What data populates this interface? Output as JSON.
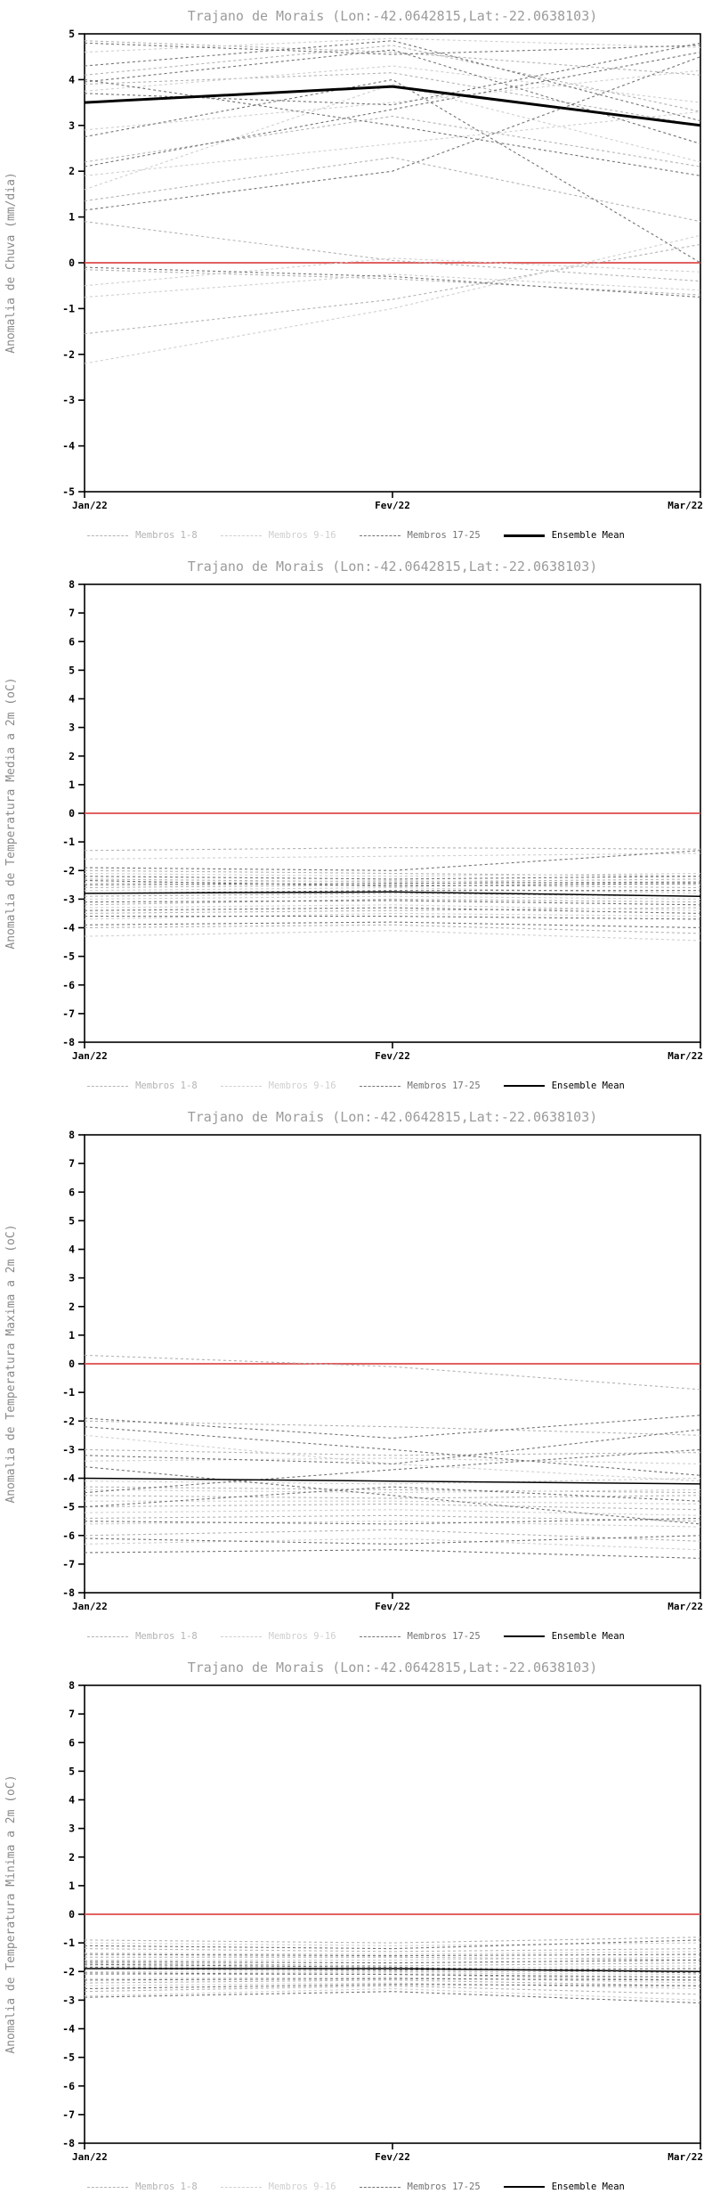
{
  "chart_data": [
    {
      "type": "line",
      "title": "Trajano de Morais (Lon:-42.0642815,Lat:-22.0638103)",
      "ylabel": "Anomalia de Chuva (mm/dia)",
      "x_categories": [
        "Jan/22",
        "Fev/22",
        "Mar/22"
      ],
      "ylim": [
        -5,
        5
      ],
      "ytick_step": 1,
      "grid": false,
      "legend_position": "bottom",
      "zero_line": {
        "value": 0,
        "color": "#dd4b4b"
      },
      "series_groups": [
        {
          "name": "Membros 1-8",
          "color": "#b3b3b3",
          "style": "dashed",
          "members": [
            [
              4.85,
              4.6,
              4.1
            ],
            [
              4.1,
              4.75,
              3.3
            ],
            [
              2.2,
              3.2,
              2.1
            ],
            [
              1.35,
              2.3,
              0.9
            ],
            [
              0.9,
              0.05,
              -0.4
            ],
            [
              -0.15,
              -0.35,
              -0.7
            ],
            [
              -1.55,
              -0.8,
              0.4
            ],
            [
              3.9,
              4.15,
              3.0
            ]
          ]
        },
        {
          "name": "Membros 9-16",
          "color": "#cfcfcf",
          "style": "dashed",
          "members": [
            [
              4.6,
              4.9,
              4.7
            ],
            [
              3.75,
              4.3,
              3.5
            ],
            [
              1.9,
              2.6,
              3.3
            ],
            [
              1.6,
              3.9,
              2.2
            ],
            [
              -0.5,
              0.1,
              -0.2
            ],
            [
              -0.75,
              -0.25,
              -0.6
            ],
            [
              -2.2,
              -1.0,
              0.6
            ],
            [
              2.9,
              3.5,
              4.2
            ]
          ]
        },
        {
          "name": "Membros 17-25",
          "color": "#737373",
          "style": "dashed",
          "members": [
            [
              4.8,
              4.55,
              4.75
            ],
            [
              4.3,
              4.85,
              3.1
            ],
            [
              3.95,
              4.65,
              2.6
            ],
            [
              3.7,
              3.45,
              4.8
            ],
            [
              2.1,
              3.35,
              4.6
            ],
            [
              2.75,
              4.0,
              0.0
            ],
            [
              1.15,
              2.0,
              4.5
            ],
            [
              -0.1,
              -0.3,
              -0.75
            ],
            [
              4.0,
              3.0,
              1.9
            ]
          ]
        }
      ],
      "ensemble_mean": {
        "name": "Ensemble Mean",
        "color": "#000000",
        "style": "solid",
        "line_width": 3,
        "values": [
          3.5,
          3.85,
          3.0
        ]
      }
    },
    {
      "type": "line",
      "title": "Trajano de Morais (Lon:-42.0642815,Lat:-22.0638103)",
      "ylabel": "Anomalia de Temperatura Media a 2m (oC)",
      "x_categories": [
        "Jan/22",
        "Fev/22",
        "Mar/22"
      ],
      "ylim": [
        -8,
        8
      ],
      "ytick_step": 1,
      "grid": false,
      "legend_position": "bottom",
      "zero_line": {
        "value": 0,
        "color": "#dd4b4b"
      },
      "series_groups": [
        {
          "name": "Membros 1-8",
          "color": "#b3b3b3",
          "style": "dashed",
          "members": [
            [
              -1.3,
              -1.2,
              -1.25
            ],
            [
              -2.0,
              -2.1,
              -2.2
            ],
            [
              -2.3,
              -2.4,
              -2.3
            ],
            [
              -2.6,
              -2.5,
              -2.6
            ],
            [
              -2.9,
              -2.8,
              -2.9
            ],
            [
              -3.2,
              -3.0,
              -3.1
            ],
            [
              -3.5,
              -3.4,
              -3.3
            ],
            [
              -4.0,
              -3.9,
              -4.2
            ]
          ]
        },
        {
          "name": "Membros 9-16",
          "color": "#cfcfcf",
          "style": "dashed",
          "members": [
            [
              -1.6,
              -1.5,
              -1.4
            ],
            [
              -2.1,
              -2.2,
              -2.1
            ],
            [
              -2.45,
              -2.35,
              -2.5
            ],
            [
              -2.7,
              -2.6,
              -2.8
            ],
            [
              -3.0,
              -2.9,
              -3.0
            ],
            [
              -3.3,
              -3.2,
              -3.4
            ],
            [
              -3.7,
              -3.5,
              -3.6
            ],
            [
              -4.3,
              -4.1,
              -4.45
            ]
          ]
        },
        {
          "name": "Membros 17-25",
          "color": "#737373",
          "style": "dashed",
          "members": [
            [
              -1.9,
              -2.0,
              -1.3
            ],
            [
              -2.2,
              -2.3,
              -2.2
            ],
            [
              -2.5,
              -2.45,
              -2.4
            ],
            [
              -2.8,
              -2.7,
              -2.7
            ],
            [
              -3.1,
              -3.05,
              -3.2
            ],
            [
              -3.4,
              -3.3,
              -3.5
            ],
            [
              -3.6,
              -3.6,
              -3.7
            ],
            [
              -3.9,
              -3.8,
              -4.0
            ],
            [
              -2.35,
              -2.55,
              -2.45
            ]
          ]
        }
      ],
      "ensemble_mean": {
        "name": "Ensemble Mean",
        "color": "#000000",
        "style": "solid",
        "line_width": 1.5,
        "values": [
          -2.8,
          -2.75,
          -2.9
        ]
      }
    },
    {
      "type": "line",
      "title": "Trajano de Morais (Lon:-42.0642815,Lat:-22.0638103)",
      "ylabel": "Anomalia de Temperatura Maxima a 2m (oC)",
      "x_categories": [
        "Jan/22",
        "Fev/22",
        "Mar/22"
      ],
      "ylim": [
        -8,
        8
      ],
      "ytick_step": 1,
      "grid": false,
      "legend_position": "bottom",
      "zero_line": {
        "value": 0,
        "color": "#dd4b4b"
      },
      "series_groups": [
        {
          "name": "Membros 1-8",
          "color": "#b3b3b3",
          "style": "dashed",
          "members": [
            [
              0.3,
              -0.1,
              -0.9
            ],
            [
              -2.0,
              -2.2,
              -2.5
            ],
            [
              -3.0,
              -3.2,
              -3.1
            ],
            [
              -4.3,
              -4.4,
              -4.5
            ],
            [
              -4.6,
              -4.7,
              -4.6
            ],
            [
              -5.0,
              -4.9,
              -5.1
            ],
            [
              -5.4,
              -5.3,
              -5.5
            ],
            [
              -6.0,
              -5.8,
              -6.2
            ]
          ]
        },
        {
          "name": "Membros 9-16",
          "color": "#cfcfcf",
          "style": "dashed",
          "members": [
            [
              -2.5,
              -3.5,
              -4.1
            ],
            [
              -3.4,
              -3.3,
              -3.5
            ],
            [
              -4.4,
              -4.5,
              -4.4
            ],
            [
              -4.8,
              -4.8,
              -4.9
            ],
            [
              -5.2,
              -5.1,
              -5.3
            ],
            [
              -5.6,
              -5.5,
              -5.7
            ],
            [
              -6.3,
              -6.1,
              -6.5
            ],
            [
              -4.1,
              -4.2,
              -4.0
            ]
          ]
        },
        {
          "name": "Membros 17-25",
          "color": "#737373",
          "style": "dashed",
          "members": [
            [
              -1.9,
              -2.6,
              -1.8
            ],
            [
              -2.2,
              -3.0,
              -3.9
            ],
            [
              -3.2,
              -3.5,
              -2.3
            ],
            [
              -3.6,
              -4.6,
              -5.6
            ],
            [
              -4.5,
              -3.7,
              -3.0
            ],
            [
              -5.0,
              -4.3,
              -4.8
            ],
            [
              -5.5,
              -5.6,
              -5.4
            ],
            [
              -6.1,
              -6.3,
              -6.0
            ],
            [
              -6.6,
              -6.5,
              -6.8
            ]
          ]
        }
      ],
      "ensemble_mean": {
        "name": "Ensemble Mean",
        "color": "#000000",
        "style": "solid",
        "line_width": 1.5,
        "values": [
          -4.0,
          -4.1,
          -4.2
        ]
      }
    },
    {
      "type": "line",
      "title": "Trajano de Morais (Lon:-42.0642815,Lat:-22.0638103)",
      "ylabel": "Anomalia de Temperatura Minima a 2m (oC)",
      "x_categories": [
        "Jan/22",
        "Fev/22",
        "Mar/22"
      ],
      "ylim": [
        -8,
        8
      ],
      "ytick_step": 1,
      "grid": false,
      "legend_position": "bottom",
      "zero_line": {
        "value": 0,
        "color": "#dd4b4b"
      },
      "series_groups": [
        {
          "name": "Membros 1-8",
          "color": "#b3b3b3",
          "style": "dashed",
          "members": [
            [
              -0.9,
              -1.0,
              -0.8
            ],
            [
              -1.2,
              -1.3,
              -1.2
            ],
            [
              -1.5,
              -1.5,
              -1.6
            ],
            [
              -1.7,
              -1.8,
              -1.7
            ],
            [
              -1.9,
              -2.0,
              -2.0
            ],
            [
              -2.1,
              -2.1,
              -2.3
            ],
            [
              -2.4,
              -2.3,
              -2.5
            ],
            [
              -2.7,
              -2.5,
              -2.8
            ]
          ]
        },
        {
          "name": "Membros 9-16",
          "color": "#cfcfcf",
          "style": "dashed",
          "members": [
            [
              -1.0,
              -1.1,
              -1.0
            ],
            [
              -1.35,
              -1.4,
              -1.3
            ],
            [
              -1.6,
              -1.6,
              -1.5
            ],
            [
              -1.8,
              -1.9,
              -1.8
            ],
            [
              -2.0,
              -2.05,
              -2.1
            ],
            [
              -2.25,
              -2.2,
              -2.4
            ],
            [
              -2.5,
              -2.4,
              -2.6
            ],
            [
              -2.85,
              -2.6,
              -3.0
            ]
          ]
        },
        {
          "name": "Membros 17-25",
          "color": "#737373",
          "style": "dashed",
          "members": [
            [
              -1.1,
              -1.2,
              -0.9
            ],
            [
              -1.4,
              -1.45,
              -1.4
            ],
            [
              -1.65,
              -1.7,
              -1.6
            ],
            [
              -1.85,
              -1.95,
              -1.9
            ],
            [
              -2.05,
              -2.1,
              -2.2
            ],
            [
              -2.3,
              -2.25,
              -2.3
            ],
            [
              -2.6,
              -2.45,
              -2.5
            ],
            [
              -2.9,
              -2.7,
              -3.1
            ],
            [
              -1.75,
              -1.85,
              -2.05
            ]
          ]
        }
      ],
      "ensemble_mean": {
        "name": "Ensemble Mean",
        "color": "#000000",
        "style": "solid",
        "line_width": 1.5,
        "values": [
          -1.9,
          -1.9,
          -2.0
        ]
      }
    }
  ]
}
